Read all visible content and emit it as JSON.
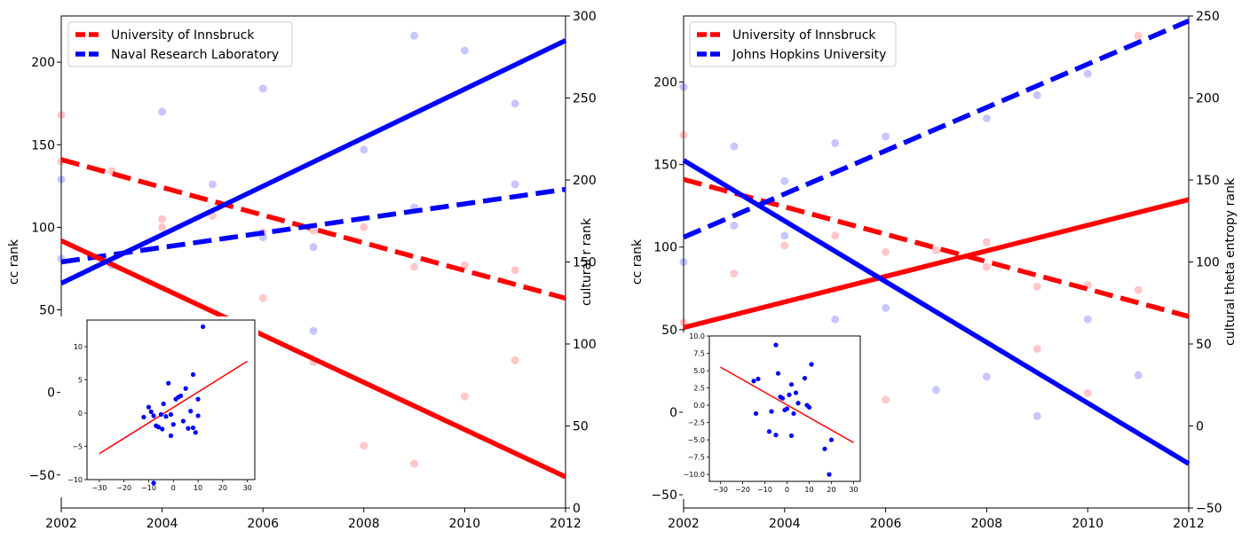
{
  "chart_data": [
    {
      "type": "line",
      "xlim": [
        2002,
        2012
      ],
      "x_ticks": [
        "2002",
        "2004",
        "2006",
        "2008",
        "2010",
        "2012"
      ],
      "left_axis": {
        "label": "cc rank",
        "ylim": [
          -70,
          228
        ],
        "ticks": [
          "−50",
          "0",
          "50",
          "100",
          "150",
          "200"
        ],
        "tick_values": [
          -50,
          0,
          50,
          100,
          150,
          200
        ]
      },
      "right_axis": {
        "label": "cultural r rank",
        "ylim": [
          0,
          300
        ],
        "ticks": [
          "0",
          "50",
          "100",
          "150",
          "200",
          "250",
          "300"
        ],
        "tick_values": [
          0,
          50,
          100,
          150,
          200,
          250,
          300
        ]
      },
      "legend": {
        "placement": "top-left",
        "entries": [
          {
            "label": "University of Innsbruck",
            "color": "#ff0000",
            "style": "dashed"
          },
          {
            "label": "Naval Research Laboratory",
            "color": "#0000ff",
            "style": "dashed"
          }
        ]
      },
      "lines": [
        {
          "color": "#ff0000",
          "style": "dashed",
          "axis": "left",
          "points": [
            [
              2002,
              141
            ],
            [
              2012,
              57
            ]
          ]
        },
        {
          "color": "#0000ff",
          "style": "dashed",
          "axis": "left",
          "points": [
            [
              2002,
              79
            ],
            [
              2012,
              123
            ]
          ]
        },
        {
          "color": "#ff0000",
          "style": "solid",
          "axis": "right",
          "points": [
            [
              2002,
              163
            ],
            [
              2012,
              19
            ]
          ]
        },
        {
          "color": "#0000ff",
          "style": "solid",
          "axis": "right",
          "points": [
            [
              2002,
              137
            ],
            [
              2012,
              285
            ]
          ]
        }
      ],
      "scatter": [
        {
          "color": "#ff0000",
          "axis": "left",
          "points": [
            [
              2002,
              168
            ],
            [
              2002,
              140
            ],
            [
              2003,
              134
            ],
            [
              2004,
              105
            ],
            [
              2004,
              100
            ],
            [
              2005,
              107
            ],
            [
              2006,
              97
            ],
            [
              2007,
              98
            ],
            [
              2008,
              100
            ],
            [
              2009,
              76
            ],
            [
              2010,
              77
            ],
            [
              2011,
              74
            ]
          ]
        },
        {
          "color": "#ff0000",
          "axis": "right",
          "points": [
            [
              2006,
              128
            ],
            [
              2007,
              89
            ],
            [
              2008,
              38
            ],
            [
              2009,
              27
            ],
            [
              2010,
              68
            ],
            [
              2011,
              90
            ]
          ]
        },
        {
          "color": "#0000ff",
          "axis": "left",
          "points": [
            [
              2002,
              129
            ],
            [
              2002,
              81
            ],
            [
              2003,
              77
            ],
            [
              2004,
              170
            ],
            [
              2005,
              126
            ],
            [
              2006,
              184
            ],
            [
              2006,
              94
            ],
            [
              2007,
              88
            ],
            [
              2008,
              147
            ],
            [
              2009,
              216
            ],
            [
              2009,
              112
            ],
            [
              2010,
              207
            ],
            [
              2011,
              175
            ],
            [
              2011,
              126
            ]
          ]
        },
        {
          "color": "#0000ff",
          "axis": "right",
          "points": [
            [
              2003,
              14
            ],
            [
              2007,
              108
            ]
          ]
        }
      ],
      "inset": {
        "xlim": [
          -35,
          33
        ],
        "ylim": [
          -10,
          14
        ],
        "x_ticks": [
          "−30",
          "−20",
          "−10",
          "0",
          "10",
          "20",
          "30"
        ],
        "x_tick_values": [
          -30,
          -20,
          -10,
          0,
          10,
          20,
          30
        ],
        "y_ticks": [
          "−10",
          "−5",
          "0",
          "5",
          "10"
        ],
        "y_tick_values": [
          -10,
          -5,
          0,
          5,
          10
        ],
        "fit_line": {
          "color": "#ff0000",
          "points": [
            [
              -30,
              -6.1
            ],
            [
              30,
              7.8
            ]
          ]
        },
        "points": [
          [
            12,
            13
          ],
          [
            -2,
            4.5
          ],
          [
            8,
            5.8
          ],
          [
            -4,
            1.4
          ],
          [
            5,
            3.7
          ],
          [
            3,
            2.6
          ],
          [
            1,
            2.1
          ],
          [
            2,
            2.4
          ],
          [
            -10,
            0.9
          ],
          [
            10,
            2.1
          ],
          [
            -9,
            0.2
          ],
          [
            7,
            0.3
          ],
          [
            -8,
            -0.4
          ],
          [
            -5,
            -0.2
          ],
          [
            -3,
            -0.5
          ],
          [
            -1,
            -0.2
          ],
          [
            4,
            -1.2
          ],
          [
            -7,
            -1.9
          ],
          [
            -6,
            -2.1
          ],
          [
            -4.5,
            -2.4
          ],
          [
            0,
            -1.7
          ],
          [
            6,
            -2.3
          ],
          [
            8,
            -2.2
          ],
          [
            -12,
            -0.6
          ],
          [
            9,
            -2.9
          ],
          [
            -1,
            -3.4
          ],
          [
            -8,
            -10.5
          ],
          [
            10,
            -0.4
          ]
        ]
      }
    },
    {
      "type": "line",
      "xlim": [
        2002,
        2012
      ],
      "x_ticks": [
        "2002",
        "2004",
        "2006",
        "2008",
        "2010",
        "2012"
      ],
      "left_axis": {
        "label": "cc rank",
        "ylim": [
          -58,
          240
        ],
        "ticks": [
          "−50",
          "0",
          "50",
          "100",
          "150",
          "200"
        ],
        "tick_values": [
          -50,
          0,
          50,
          100,
          150,
          200
        ]
      },
      "right_axis": {
        "label": "cultural theta entropy rank",
        "ylim": [
          -50,
          250
        ],
        "ticks": [
          "−50",
          "0",
          "50",
          "100",
          "150",
          "200",
          "250"
        ],
        "tick_values": [
          -50,
          0,
          50,
          100,
          150,
          200,
          250
        ]
      },
      "legend": {
        "placement": "top-left",
        "entries": [
          {
            "label": "University of Innsbruck",
            "color": "#ff0000",
            "style": "dashed"
          },
          {
            "label": "Johns Hopkins University",
            "color": "#0000ff",
            "style": "dashed"
          }
        ]
      },
      "lines": [
        {
          "color": "#ff0000",
          "style": "dashed",
          "axis": "left",
          "points": [
            [
              2002,
              141
            ],
            [
              2012,
              58
            ]
          ]
        },
        {
          "color": "#0000ff",
          "style": "dashed",
          "axis": "left",
          "points": [
            [
              2002,
              106
            ],
            [
              2012,
              237
            ]
          ]
        },
        {
          "color": "#ff0000",
          "style": "solid",
          "axis": "right",
          "points": [
            [
              2002,
              60
            ],
            [
              2012,
              138
            ]
          ]
        },
        {
          "color": "#0000ff",
          "style": "solid",
          "axis": "right",
          "points": [
            [
              2002,
              162
            ],
            [
              2012,
              -23
            ]
          ]
        }
      ],
      "scatter": [
        {
          "color": "#ff0000",
          "axis": "left",
          "points": [
            [
              2002,
              168
            ],
            [
              2003,
              84
            ],
            [
              2004,
              101
            ],
            [
              2005,
              107
            ],
            [
              2006,
              97
            ],
            [
              2007,
              98
            ],
            [
              2008,
              103
            ],
            [
              2008,
              88
            ],
            [
              2009,
              76
            ],
            [
              2010,
              77
            ],
            [
              2011,
              74
            ],
            [
              2011,
              228
            ]
          ]
        },
        {
          "color": "#ff0000",
          "axis": "right",
          "points": [
            [
              2002,
              63
            ],
            [
              2006,
              16
            ],
            [
              2009,
              47
            ],
            [
              2010,
              20
            ]
          ]
        },
        {
          "color": "#0000ff",
          "axis": "left",
          "points": [
            [
              2002,
              197
            ],
            [
              2002,
              91
            ],
            [
              2003,
              161
            ],
            [
              2003,
              113
            ],
            [
              2004,
              140
            ],
            [
              2004,
              107
            ],
            [
              2005,
              163
            ],
            [
              2006,
              167
            ],
            [
              2008,
              178
            ],
            [
              2009,
              192
            ],
            [
              2010,
              205
            ]
          ]
        },
        {
          "color": "#0000ff",
          "axis": "right",
          "points": [
            [
              2005,
              65
            ],
            [
              2006,
              72
            ],
            [
              2007,
              22
            ],
            [
              2008,
              30
            ],
            [
              2009,
              6
            ],
            [
              2010,
              65
            ],
            [
              2011,
              31
            ]
          ]
        }
      ],
      "inset": {
        "xlim": [
          -35,
          33
        ],
        "ylim": [
          -11,
          10
        ],
        "x_ticks": [
          "−30",
          "−20",
          "−10",
          "0",
          "10",
          "20",
          "30"
        ],
        "x_tick_values": [
          -30,
          -20,
          -10,
          0,
          10,
          20,
          30
        ],
        "y_ticks": [
          "−10.0",
          "−7.5",
          "−5.0",
          "−2.5",
          "0.0",
          "2.5",
          "5.0",
          "7.5",
          "10.0"
        ],
        "y_tick_values": [
          -10,
          -7.5,
          -5,
          -2.5,
          0,
          2.5,
          5,
          7.5,
          10
        ],
        "fit_line": {
          "color": "#ff0000",
          "points": [
            [
              -30,
              5.5
            ],
            [
              30,
              -5.4
            ]
          ]
        },
        "points": [
          [
            -15,
            3.5
          ],
          [
            -13,
            3.8
          ],
          [
            -5,
            8.7
          ],
          [
            -4,
            4.6
          ],
          [
            2,
            3
          ],
          [
            8,
            3.9
          ],
          [
            11,
            5.9
          ],
          [
            4,
            1.8
          ],
          [
            -3,
            1.2
          ],
          [
            -2,
            1
          ],
          [
            1,
            1.5
          ],
          [
            5,
            0.3
          ],
          [
            -1,
            -0.7
          ],
          [
            0,
            -0.5
          ],
          [
            9,
            0
          ],
          [
            10,
            -0.3
          ],
          [
            -14,
            -1.2
          ],
          [
            -7,
            -0.9
          ],
          [
            3,
            -1.2
          ],
          [
            -8,
            -3.8
          ],
          [
            -5,
            -4.3
          ],
          [
            2,
            -4.4
          ],
          [
            20,
            -5
          ],
          [
            17,
            -6.3
          ],
          [
            19,
            -10
          ]
        ]
      }
    }
  ]
}
